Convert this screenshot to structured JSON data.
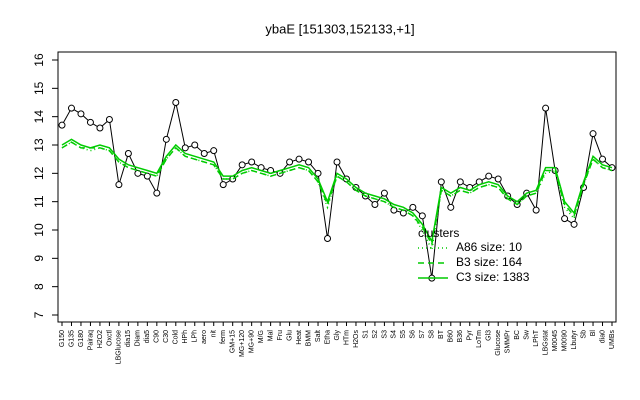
{
  "chart_data": {
    "type": "line",
    "title": "ybaE [151303,152133,+1]",
    "categories": [
      "G150",
      "G135",
      "G180",
      "Pairaq",
      "H2O2",
      "Oxctl",
      "LBGlucose",
      "dia15",
      "Diam",
      "dia5",
      "C90",
      "C30",
      "Cold",
      "HPh",
      "LPh",
      "aero",
      "nit",
      "ferm",
      "GM+15",
      "MG+120",
      "MG+90",
      "M/G",
      "Mal",
      "Fru",
      "Glu",
      "Heat",
      "BMM",
      "Salt",
      "Etha",
      "Gly",
      "HTm",
      "H2Os",
      "S1",
      "S2",
      "S3",
      "S4",
      "S5",
      "S6",
      "S7",
      "S8",
      "BT",
      "B60",
      "B36",
      "Pyr",
      "LoTm",
      "Gl3",
      "Glucose",
      "SMMPr",
      "BC",
      "Sw",
      "LPhT",
      "LBGstat",
      "M0045",
      "M0090",
      "Lbutyr",
      "Sb",
      "Bl",
      "dia0",
      "UMBs"
    ],
    "series": [
      {
        "color": "#000000",
        "style": "points",
        "values": [
          13.7,
          14.3,
          14.1,
          13.8,
          13.6,
          13.9,
          11.6,
          12.7,
          12.0,
          11.9,
          11.3,
          13.2,
          14.5,
          12.9,
          13.0,
          12.7,
          12.8,
          11.6,
          11.8,
          12.3,
          12.4,
          12.2,
          12.1,
          12.0,
          12.4,
          12.5,
          12.4,
          12.0,
          9.7,
          12.4,
          11.8,
          11.5,
          11.2,
          10.9,
          11.3,
          10.7,
          10.6,
          10.8,
          10.5,
          8.3,
          11.7,
          10.8,
          11.7,
          11.5,
          11.7,
          11.9,
          11.8,
          11.2,
          10.9,
          11.3,
          10.7,
          14.3,
          12.1,
          10.4,
          10.2,
          11.5,
          13.4,
          12.5,
          12.2
        ]
      },
      {
        "name": "A86 size: 10",
        "color": "#00cc00",
        "style": "dotted",
        "values": [
          12.9,
          13.1,
          12.9,
          12.8,
          12.9,
          12.8,
          12.4,
          12.2,
          12.1,
          12.0,
          11.9,
          12.5,
          12.9,
          12.6,
          12.5,
          12.4,
          12.3,
          11.8,
          11.8,
          12.0,
          12.1,
          12.0,
          11.9,
          12.0,
          12.1,
          12.2,
          12.1,
          11.7,
          10.8,
          11.9,
          11.7,
          11.4,
          11.2,
          11.1,
          11.0,
          10.8,
          10.7,
          10.5,
          10.0,
          9.3,
          11.4,
          11.2,
          11.4,
          11.3,
          11.5,
          11.6,
          11.5,
          11.1,
          10.9,
          11.2,
          11.3,
          12.0,
          12.1,
          10.8,
          10.4,
          11.6,
          12.5,
          12.2,
          12.1
        ]
      },
      {
        "name": "B3 size: 164",
        "color": "#00cc00",
        "style": "dashed",
        "values": [
          12.9,
          13.1,
          12.9,
          12.9,
          12.9,
          12.8,
          12.4,
          12.2,
          12.1,
          12.0,
          11.9,
          12.5,
          12.9,
          12.6,
          12.5,
          12.4,
          12.3,
          11.8,
          11.8,
          12.0,
          12.1,
          12.0,
          11.9,
          12.0,
          12.1,
          12.2,
          12.1,
          11.7,
          10.9,
          11.9,
          11.7,
          11.4,
          11.2,
          11.1,
          11.0,
          10.8,
          10.7,
          10.5,
          10.1,
          9.5,
          11.4,
          11.2,
          11.4,
          11.3,
          11.5,
          11.6,
          11.5,
          11.1,
          10.9,
          11.2,
          11.3,
          12.1,
          12.1,
          10.9,
          10.5,
          11.6,
          12.5,
          12.2,
          12.1
        ]
      },
      {
        "name": "C3 size: 1383",
        "color": "#00cc00",
        "style": "solid",
        "values": [
          13.0,
          13.2,
          13.0,
          12.9,
          13.0,
          12.9,
          12.5,
          12.3,
          12.2,
          12.1,
          12.0,
          12.6,
          13.0,
          12.7,
          12.6,
          12.5,
          12.4,
          11.9,
          11.9,
          12.1,
          12.2,
          12.1,
          12.0,
          12.1,
          12.2,
          12.3,
          12.2,
          11.8,
          11.0,
          12.0,
          11.8,
          11.5,
          11.3,
          11.2,
          11.1,
          10.9,
          10.8,
          10.6,
          10.2,
          9.6,
          11.5,
          11.3,
          11.5,
          11.4,
          11.6,
          11.7,
          11.6,
          11.2,
          11.0,
          11.3,
          11.4,
          12.2,
          12.2,
          11.0,
          10.6,
          11.7,
          12.6,
          12.3,
          12.2
        ]
      }
    ],
    "legend_title": "clusters",
    "ylim": [
      7,
      16
    ],
    "yticks": [
      7,
      8,
      9,
      10,
      11,
      12,
      13,
      14,
      15,
      16
    ]
  }
}
